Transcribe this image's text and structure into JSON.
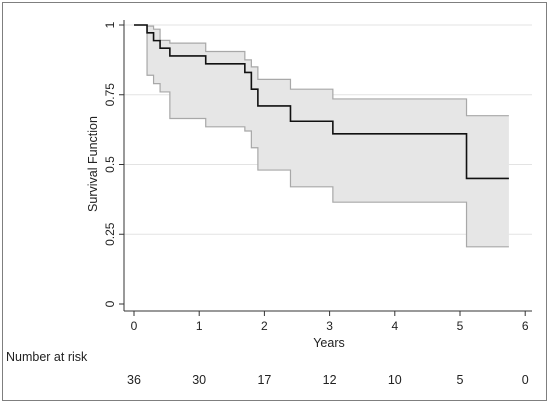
{
  "chart_data": {
    "type": "line",
    "title": "",
    "xlabel": "Years",
    "ylabel": "Survival Function",
    "xlim": [
      0,
      6
    ],
    "ylim": [
      0,
      1
    ],
    "x_ticks": [
      "0",
      "1",
      "2",
      "3",
      "4",
      "5",
      "6"
    ],
    "y_ticks": [
      "0",
      "0.25",
      "0.5",
      "0.75",
      "1"
    ],
    "grid": "horizontal",
    "series": [
      {
        "role": "estimate",
        "step": true,
        "x": [
          0,
          0.2,
          0.3,
          0.4,
          0.55,
          1.1,
          1.7,
          1.8,
          1.9,
          2.4,
          3.05,
          5.1,
          5.75
        ],
        "y": [
          1.0,
          0.972,
          0.944,
          0.917,
          0.889,
          0.861,
          0.83,
          0.77,
          0.71,
          0.655,
          0.61,
          0.45,
          0.45
        ]
      }
    ],
    "confidence_band": {
      "x": [
        0,
        0.2,
        0.3,
        0.4,
        0.55,
        1.1,
        1.7,
        1.8,
        1.9,
        2.4,
        3.05,
        5.1,
        5.75
      ],
      "lower": [
        1.0,
        0.82,
        0.79,
        0.76,
        0.665,
        0.635,
        0.62,
        0.56,
        0.48,
        0.42,
        0.365,
        0.205,
        0.205
      ],
      "upper": [
        1.0,
        0.996,
        0.985,
        0.945,
        0.935,
        0.905,
        0.875,
        0.85,
        0.805,
        0.77,
        0.735,
        0.675,
        0.675
      ]
    },
    "colors": {
      "line": "#111111",
      "band_fill": "#e6e6e6",
      "band_edge": "#a8a8a8",
      "grid": "#e3e3e3"
    }
  },
  "risk_table": {
    "label": "Number at risk",
    "values": [
      "36",
      "30",
      "17",
      "12",
      "10",
      "5",
      "0"
    ]
  }
}
